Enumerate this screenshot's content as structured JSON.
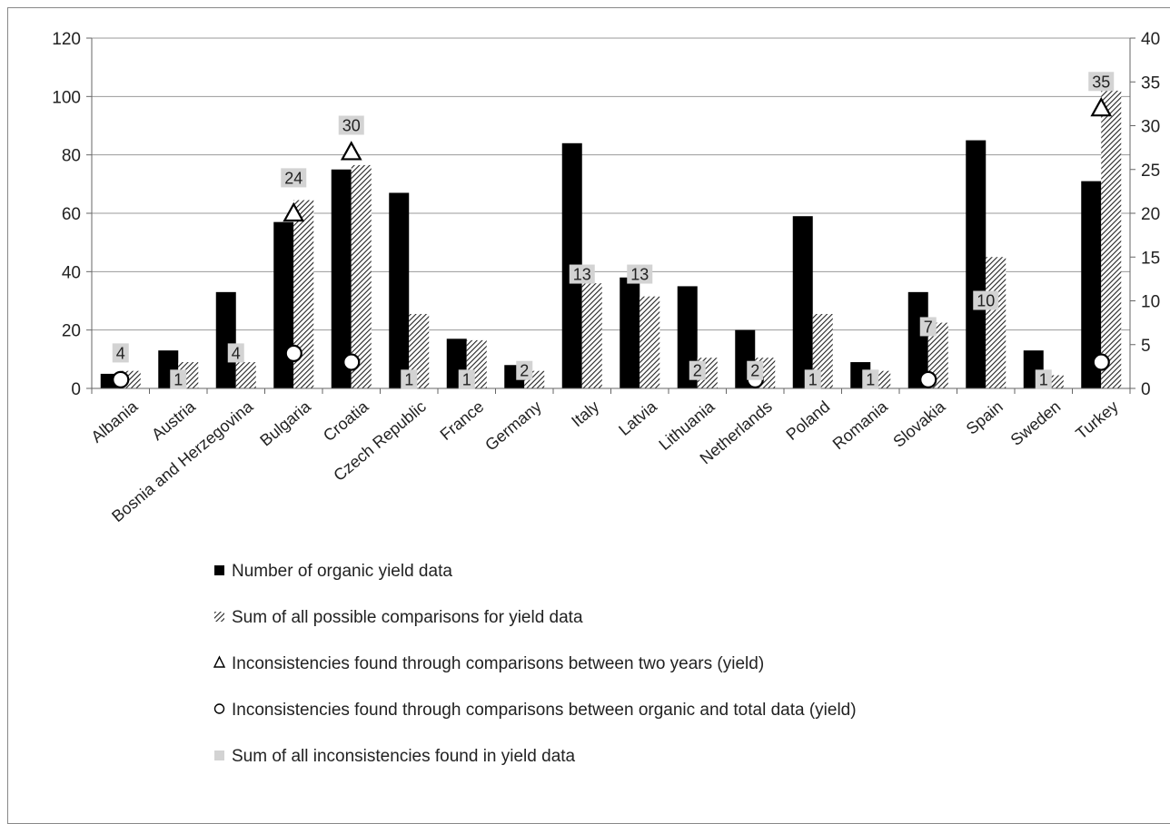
{
  "chart_data": {
    "type": "bar",
    "categories": [
      "Albania",
      "Austria",
      "Bosnia and Herzegovina",
      "Bulgaria",
      "Croatia",
      "Czech Republic",
      "France",
      "Germany",
      "Italy",
      "Latvia",
      "Lithuania",
      "Netherlands",
      "Poland",
      "Romania",
      "Slovakia",
      "Spain",
      "Sweden",
      "Turkey"
    ],
    "series": [
      {
        "name": "Number of organic yield data",
        "axis": "left",
        "style": "solid-black",
        "values": [
          5,
          13,
          33,
          57,
          75,
          67,
          17,
          8,
          84,
          38,
          35,
          20,
          59,
          9,
          33,
          85,
          13,
          71
        ]
      },
      {
        "name": "Sum of all possible comparisons for yield data",
        "axis": "right",
        "style": "hatched",
        "values": [
          2,
          3,
          3,
          21.5,
          25.5,
          8.5,
          5.5,
          2,
          12,
          10.5,
          3.5,
          3.5,
          8.5,
          2,
          7.5,
          15,
          1.5,
          34
        ]
      },
      {
        "name": "Inconsistencies found through comparisons between two years (yield)",
        "axis": "right",
        "style": "triangle-marker",
        "values": [
          null,
          null,
          null,
          20,
          27,
          null,
          null,
          null,
          null,
          null,
          null,
          null,
          null,
          null,
          null,
          null,
          null,
          32
        ]
      },
      {
        "name": "Inconsistencies found through comparisons between organic and total data (yield)",
        "axis": "right",
        "style": "circle-marker",
        "values": [
          1,
          null,
          null,
          4,
          3,
          null,
          null,
          null,
          null,
          null,
          null,
          1,
          null,
          null,
          1,
          null,
          null,
          3
        ]
      },
      {
        "name": "Sum of all inconsistencies found in yield data",
        "axis": "right",
        "style": "data-labels",
        "values": [
          4,
          1,
          4,
          24,
          30,
          1,
          1,
          2,
          13,
          13,
          2,
          2,
          1,
          1,
          7,
          10,
          1,
          35
        ]
      }
    ],
    "data_labels": [
      "4",
      "1",
      "4",
      "24",
      "30",
      "1",
      "1",
      "2",
      "13",
      "13",
      "2",
      "2",
      "1",
      "1",
      "7",
      "10",
      "1",
      "35"
    ],
    "y_left": {
      "ticks": [
        "0",
        "20",
        "40",
        "60",
        "80",
        "100",
        "120"
      ],
      "ylim": [
        0,
        120
      ]
    },
    "y_right": {
      "ticks": [
        "0",
        "5",
        "10",
        "15",
        "20",
        "25",
        "30",
        "35",
        "40"
      ],
      "ylim": [
        0,
        40
      ]
    },
    "grid": true,
    "legend_position": "bottom"
  },
  "legend": [
    {
      "label": "Number of organic yield data",
      "marker": "solid-square"
    },
    {
      "label": "Sum of all possible comparisons for yield data",
      "marker": "hatched-square"
    },
    {
      "label": "Inconsistencies found through comparisons between two years (yield)",
      "marker": "triangle"
    },
    {
      "label": "Inconsistencies found through comparisons between organic and total data (yield)",
      "marker": "circle"
    },
    {
      "label": "Sum of all inconsistencies found in yield data",
      "marker": "grey-square"
    }
  ]
}
